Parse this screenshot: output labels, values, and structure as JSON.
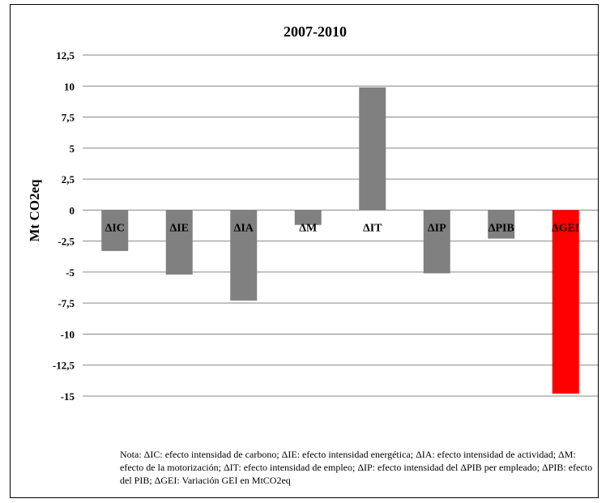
{
  "chart_data": {
    "type": "bar",
    "title": "2007-2010",
    "ylabel": "Mt CO2eq",
    "xlabel": "",
    "categories": [
      "ΔIC",
      "ΔIE",
      "ΔIA",
      "ΔM",
      "ΔIT",
      "ΔIP",
      "ΔPIB",
      "ΔGEI"
    ],
    "values": [
      -3.3,
      -5.2,
      -7.3,
      -1.2,
      9.9,
      -5.1,
      -2.3,
      -14.8
    ],
    "ylim": [
      -15,
      12.5
    ],
    "yticks": [
      12.5,
      10,
      7.5,
      5,
      2.5,
      0,
      -2.5,
      -5,
      -7.5,
      -10,
      -12.5,
      -15
    ],
    "ytick_labels": [
      "12,5",
      "10",
      "7,5",
      "5",
      "2,5",
      "0",
      "-2,5",
      "-5",
      "-7,5",
      "-10",
      "-12,5",
      "-15"
    ],
    "grid": true,
    "colors": {
      "default_bar": "#808080",
      "highlight_bar": "#ff0000",
      "highlight_category": "ΔGEI",
      "gridline": "#868686"
    }
  },
  "note": "Nota: ΔIC: efecto intensidad de carbono; ΔIE: efecto intensidad energética; ΔIA: efecto intensidad de actividad; ΔM: efecto de la motorización; ΔIT: efecto intensidad de empleo; ΔIP: efecto intensidad del ΔPIB per empleado; ΔPIB: efecto del PIB; ΔGEI: Variación GEI en MtCO2eq"
}
